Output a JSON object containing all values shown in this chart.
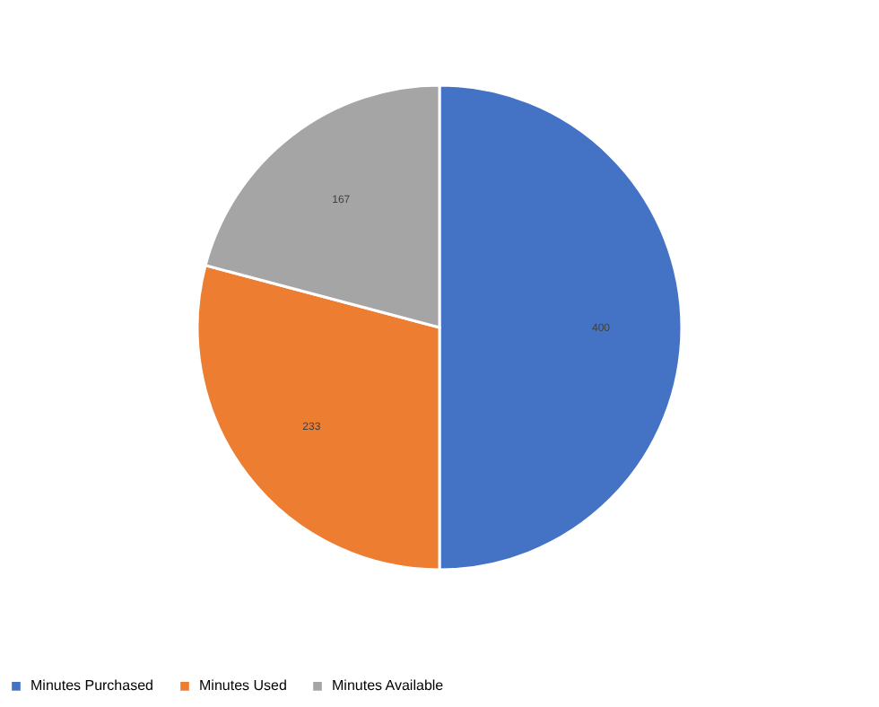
{
  "chart_data": {
    "type": "pie",
    "categories": [
      "Minutes Purchased",
      "Minutes Used",
      "Minutes Available"
    ],
    "values": [
      400,
      233,
      167
    ],
    "colors": [
      "#4472c4",
      "#ed7d31",
      "#a5a5a5"
    ],
    "data_labels": true,
    "legend": "bottom"
  }
}
